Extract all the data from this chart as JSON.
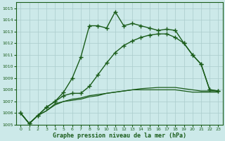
{
  "xlabel": "Graphe pression niveau de la mer (hPa)",
  "background_color": "#cce9e9",
  "grid_color": "#aacccc",
  "line_color": "#1a5c1a",
  "ylim": [
    1005,
    1015.5
  ],
  "xlim": [
    -0.5,
    23.5
  ],
  "yticks": [
    1005,
    1006,
    1007,
    1008,
    1009,
    1010,
    1011,
    1012,
    1013,
    1014,
    1015
  ],
  "xticks": [
    0,
    1,
    2,
    3,
    4,
    5,
    6,
    7,
    8,
    9,
    10,
    11,
    12,
    13,
    14,
    15,
    16,
    17,
    18,
    19,
    20,
    21,
    22,
    23
  ],
  "series": [
    {
      "x": [
        0,
        1,
        2,
        3,
        4,
        5,
        6,
        7,
        8,
        9,
        10,
        11,
        12,
        13,
        14,
        15,
        16,
        17,
        18,
        19,
        20,
        21,
        22,
        23
      ],
      "y": [
        1006.0,
        1005.1,
        1005.8,
        1006.5,
        1007.0,
        1007.8,
        1009.0,
        1010.8,
        1013.5,
        1013.5,
        1013.3,
        1014.7,
        1013.5,
        1013.7,
        1013.5,
        1013.3,
        1013.1,
        1013.2,
        1013.1,
        1012.0,
        1011.0,
        1010.2,
        1008.0,
        1007.9
      ],
      "marker": "+",
      "markersize": 4,
      "linewidth": 1.0,
      "zorder": 3
    },
    {
      "x": [
        0,
        1,
        2,
        3,
        4,
        5,
        6,
        7,
        8,
        9,
        10,
        11,
        12,
        13,
        14,
        15,
        16,
        17,
        18,
        19,
        20,
        21,
        22,
        23
      ],
      "y": [
        1006.0,
        1005.1,
        1005.8,
        1006.5,
        1007.0,
        1007.5,
        1007.7,
        1007.7,
        1008.3,
        1009.3,
        1010.3,
        1011.2,
        1011.8,
        1012.2,
        1012.5,
        1012.7,
        1012.8,
        1012.8,
        1012.5,
        1012.0,
        1011.0,
        1010.2,
        1008.0,
        1007.9
      ],
      "marker": "+",
      "markersize": 4,
      "linewidth": 1.0,
      "zorder": 3
    },
    {
      "x": [
        0,
        1,
        2,
        3,
        4,
        5,
        6,
        7,
        8,
        9,
        10,
        11,
        12,
        13,
        14,
        15,
        16,
        17,
        18,
        19,
        20,
        21,
        22,
        23
      ],
      "y": [
        1006.0,
        1005.1,
        1005.8,
        1006.2,
        1006.7,
        1007.0,
        1007.2,
        1007.3,
        1007.5,
        1007.6,
        1007.7,
        1007.8,
        1007.9,
        1008.0,
        1008.1,
        1008.15,
        1008.2,
        1008.2,
        1008.2,
        1008.1,
        1008.0,
        1007.9,
        1007.9,
        1007.9
      ],
      "marker": null,
      "markersize": 0,
      "linewidth": 0.9,
      "zorder": 2
    },
    {
      "x": [
        0,
        1,
        2,
        3,
        4,
        5,
        6,
        7,
        8,
        9,
        10,
        11,
        12,
        13,
        14,
        15,
        16,
        17,
        18,
        19,
        20,
        21,
        22,
        23
      ],
      "y": [
        1006.0,
        1005.1,
        1005.8,
        1006.2,
        1006.8,
        1007.0,
        1007.1,
        1007.2,
        1007.4,
        1007.5,
        1007.7,
        1007.8,
        1007.9,
        1008.0,
        1008.0,
        1008.0,
        1008.0,
        1008.0,
        1008.0,
        1007.9,
        1007.8,
        1007.8,
        1007.8,
        1007.8
      ],
      "marker": null,
      "markersize": 0,
      "linewidth": 0.9,
      "zorder": 2
    }
  ]
}
